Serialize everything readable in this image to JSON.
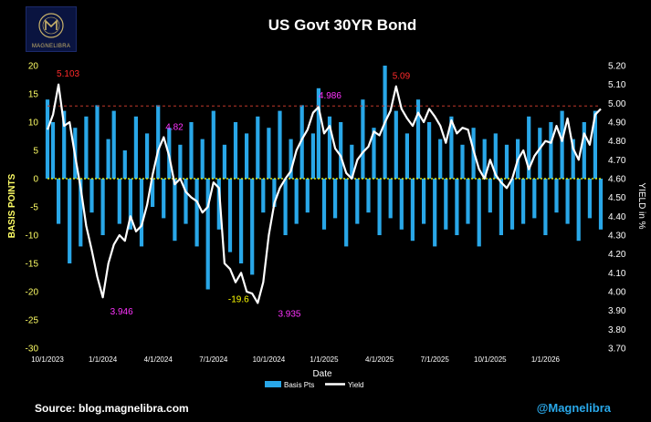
{
  "logo": {
    "name": "MAGNELIBRA",
    "colors": {
      "frame": "#0a1440",
      "gold": "#c8b26a"
    }
  },
  "footer": {
    "source": "Source: blog.magnelibra.com",
    "handle": "@Magnelibra"
  },
  "colors": {
    "bar": "#29a7e8",
    "line": "#ffffff",
    "zero_line": "#ffff00",
    "ref_line": "#c0392b",
    "high_label": "#ff2a2a",
    "low_label": "#ff33ff",
    "min_label": "#ffff00",
    "left_tick": "#ffff66"
  },
  "chart_data": {
    "type": "bar+line",
    "title": "US Govt 30YR Bond",
    "xlabel": "Date",
    "ylabel_left": "BASIS POINTS",
    "ylabel_right": "YIELD in %",
    "xlim": [
      0,
      30
    ],
    "ylim_left": [
      -30,
      20
    ],
    "ylim_right": [
      3.7,
      5.2
    ],
    "reference_line_right": 4.986,
    "x_ticks": [
      {
        "pos": 0,
        "label": "10/1/2023"
      },
      {
        "pos": 3,
        "label": "1/1/2024"
      },
      {
        "pos": 6,
        "label": "4/1/2024"
      },
      {
        "pos": 9,
        "label": "7/1/2024"
      },
      {
        "pos": 12,
        "label": "10/1/2024"
      },
      {
        "pos": 15,
        "label": "1/1/2025"
      },
      {
        "pos": 18,
        "label": "4/1/2025"
      },
      {
        "pos": 21,
        "label": "7/1/2025"
      },
      {
        "pos": 24,
        "label": "10/1/2025"
      },
      {
        "pos": 27,
        "label": "1/1/2026"
      }
    ],
    "left_ticks": [
      "20",
      "15",
      "10",
      "5",
      "0",
      "-5",
      "-10",
      "-15",
      "-20",
      "-25",
      "-30"
    ],
    "right_ticks": [
      "5.20",
      "5.10",
      "5.00",
      "4.90",
      "4.80",
      "4.70",
      "4.60",
      "4.50",
      "4.40",
      "4.30",
      "4.20",
      "4.10",
      "4.00",
      "3.90",
      "3.80",
      "3.70"
    ],
    "legend": [
      {
        "name": "Basis Pts"
      },
      {
        "name": "Yield"
      }
    ],
    "annotations": [
      {
        "text": "5.103",
        "x": 0.3,
        "y": 5.103,
        "color": "high"
      },
      {
        "text": "4.82",
        "x": 6.2,
        "y": 4.82,
        "color": "low"
      },
      {
        "text": "3.946",
        "x": 3.2,
        "y": 3.946,
        "color": "low"
      },
      {
        "text": "-19.6",
        "x": 9.6,
        "y": -19.6,
        "axis": "left",
        "color": "min"
      },
      {
        "text": "3.935",
        "x": 12.3,
        "y": 3.935,
        "color": "low"
      },
      {
        "text": "4.986",
        "x": 14.5,
        "y": 4.986,
        "color": "low"
      },
      {
        "text": "5.09",
        "x": 18.5,
        "y": 5.09,
        "color": "high"
      }
    ],
    "series": [
      {
        "name": "Yield",
        "axis": "right",
        "x": [
          0,
          0.3,
          0.6,
          0.9,
          1.2,
          1.5,
          1.8,
          2.1,
          2.4,
          2.7,
          3.0,
          3.3,
          3.6,
          3.9,
          4.2,
          4.5,
          4.8,
          5.1,
          5.4,
          5.7,
          6.0,
          6.3,
          6.6,
          6.9,
          7.2,
          7.5,
          7.8,
          8.1,
          8.4,
          8.7,
          9.0,
          9.3,
          9.6,
          9.9,
          10.2,
          10.5,
          10.8,
          11.1,
          11.4,
          11.7,
          12.0,
          12.3,
          12.6,
          12.9,
          13.2,
          13.5,
          13.8,
          14.1,
          14.4,
          14.7,
          15.0,
          15.3,
          15.6,
          15.9,
          16.2,
          16.5,
          16.8,
          17.1,
          17.4,
          17.7,
          18.0,
          18.3,
          18.6,
          18.9,
          19.2,
          19.5,
          19.8,
          20.1,
          20.4,
          20.7,
          21.0,
          21.3,
          21.6,
          21.9,
          22.2,
          22.5,
          22.8,
          23.1,
          23.4,
          23.7,
          24.0,
          24.3,
          24.6,
          24.9,
          25.2,
          25.5,
          25.8,
          26.1,
          26.4,
          26.7,
          27.0,
          27.3,
          27.6,
          27.9,
          28.2,
          28.5,
          28.8,
          29.1,
          29.4,
          29.7,
          30.0
        ],
        "values": [
          4.86,
          4.94,
          5.1,
          4.88,
          4.9,
          4.72,
          4.55,
          4.35,
          4.22,
          4.08,
          3.97,
          4.15,
          4.25,
          4.3,
          4.27,
          4.4,
          4.32,
          4.35,
          4.46,
          4.62,
          4.75,
          4.82,
          4.72,
          4.57,
          4.6,
          4.53,
          4.5,
          4.48,
          4.42,
          4.45,
          4.58,
          4.55,
          4.15,
          4.12,
          4.05,
          4.1,
          4.0,
          3.99,
          3.94,
          4.05,
          4.3,
          4.47,
          4.55,
          4.6,
          4.64,
          4.75,
          4.81,
          4.86,
          4.95,
          4.98,
          4.84,
          4.88,
          4.76,
          4.72,
          4.63,
          4.6,
          4.7,
          4.74,
          4.77,
          4.85,
          4.83,
          4.9,
          4.96,
          5.09,
          4.97,
          4.92,
          4.88,
          4.95,
          4.9,
          4.97,
          4.93,
          4.88,
          4.79,
          4.91,
          4.84,
          4.87,
          4.86,
          4.75,
          4.65,
          4.6,
          4.7,
          4.62,
          4.58,
          4.55,
          4.6,
          4.7,
          4.75,
          4.65,
          4.72,
          4.76,
          4.8,
          4.79,
          4.88,
          4.8,
          4.92,
          4.76,
          4.7,
          4.84,
          4.78,
          4.94,
          4.97
        ]
      },
      {
        "name": "Basis Pts",
        "axis": "left",
        "x": [
          0,
          0.3,
          0.6,
          0.9,
          1.2,
          1.5,
          1.8,
          2.1,
          2.4,
          2.7,
          3.0,
          3.3,
          3.6,
          3.9,
          4.2,
          4.5,
          4.8,
          5.1,
          5.4,
          5.7,
          6.0,
          6.3,
          6.6,
          6.9,
          7.2,
          7.5,
          7.8,
          8.1,
          8.4,
          8.7,
          9.0,
          9.3,
          9.6,
          9.9,
          10.2,
          10.5,
          10.8,
          11.1,
          11.4,
          11.7,
          12.0,
          12.3,
          12.6,
          12.9,
          13.2,
          13.5,
          13.8,
          14.1,
          14.4,
          14.7,
          15.0,
          15.3,
          15.6,
          15.9,
          16.2,
          16.5,
          16.8,
          17.1,
          17.4,
          17.7,
          18.0,
          18.3,
          18.6,
          18.9,
          19.2,
          19.5,
          19.8,
          20.1,
          20.4,
          20.7,
          21.0,
          21.3,
          21.6,
          21.9,
          22.2,
          22.5,
          22.8,
          23.1,
          23.4,
          23.7,
          24.0,
          24.3,
          24.6,
          24.9,
          25.2,
          25.5,
          25.8,
          26.1,
          26.4,
          26.7,
          27.0,
          27.3,
          27.6,
          27.9,
          28.2,
          28.5,
          28.8,
          29.1,
          29.4,
          29.7,
          30.0
        ],
        "values": [
          14,
          10,
          -8,
          12,
          -15,
          9,
          -12,
          11,
          -6,
          13,
          -10,
          7,
          12,
          -8,
          5,
          -9,
          11,
          -12,
          8,
          -5,
          13,
          -7,
          9,
          -11,
          6,
          -8,
          10,
          -12,
          7,
          -19.6,
          12,
          -9,
          6,
          -13,
          10,
          -15,
          8,
          -17,
          11,
          -6,
          9,
          -5,
          12,
          -10,
          7,
          -8,
          13,
          -6,
          8,
          16,
          -9,
          11,
          -7,
          10,
          -12,
          6,
          -8,
          14,
          -6,
          9,
          -10,
          20,
          -7,
          12,
          -9,
          8,
          -11,
          14,
          -8,
          10,
          -12,
          7,
          -9,
          11,
          -10,
          6,
          -8,
          9,
          -12,
          7,
          -6,
          8,
          -10,
          6,
          -9,
          7,
          -8,
          11,
          -7,
          9,
          -10,
          10,
          -6,
          12,
          -8,
          7,
          -11,
          10,
          -7,
          12,
          -9
        ]
      }
    ]
  }
}
